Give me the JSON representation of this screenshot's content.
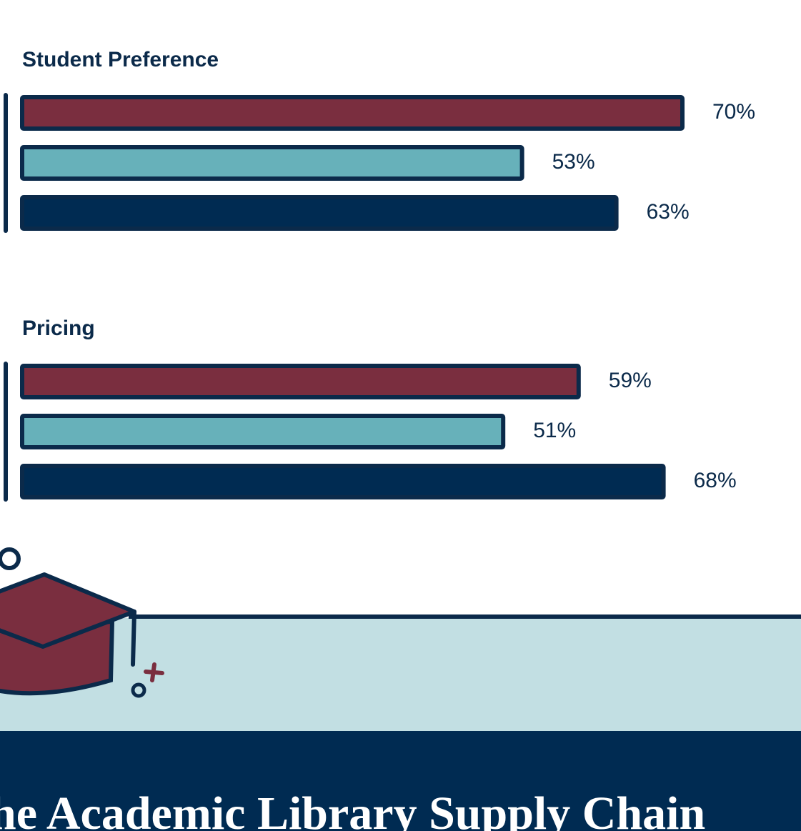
{
  "chart_data": [
    {
      "type": "bar",
      "title": "Student Preference",
      "values": [
        70,
        53,
        63
      ],
      "value_labels": [
        "70%",
        "53%",
        "63%"
      ],
      "colors": [
        "#7a2e3f",
        "#67b1ba",
        "#002b52"
      ]
    },
    {
      "type": "bar",
      "title": "Pricing",
      "values": [
        59,
        51,
        68
      ],
      "value_labels": [
        "59%",
        "51%",
        "68%"
      ],
      "colors": [
        "#7a2e3f",
        "#67b1ba",
        "#002b52"
      ]
    }
  ],
  "footer": {
    "title": "The Academic Library Supply Chain"
  }
}
